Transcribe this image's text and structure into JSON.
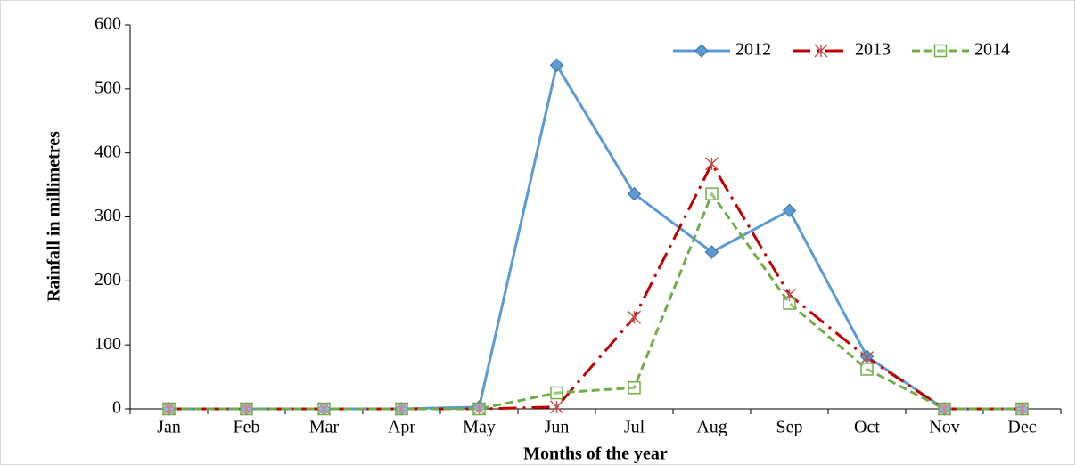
{
  "chart_data": {
    "type": "line",
    "x_label": "Months of the year",
    "y_label": "Rainfall in millimetres",
    "categories": [
      "Jan",
      "Feb",
      "Mar",
      "Apr",
      "May",
      "Jun",
      "Jul",
      "Aug",
      "Sep",
      "Oct",
      "Nov",
      "Dec"
    ],
    "ylim": [
      0,
      600
    ],
    "yticks": [
      0,
      100,
      200,
      300,
      400,
      500,
      600
    ],
    "grid": false,
    "legend": "upper right",
    "series": [
      {
        "name": "2012",
        "color": "#5b9bd5",
        "marker": "diamond",
        "dash": "solid",
        "values": [
          0,
          0,
          0,
          0,
          3,
          537,
          336,
          245,
          310,
          82,
          0,
          0
        ]
      },
      {
        "name": "2013",
        "color": "#c00000",
        "marker": "star",
        "dash": "dashdot",
        "values": [
          0,
          0,
          0,
          0,
          0,
          3,
          143,
          383,
          178,
          80,
          0,
          0
        ]
      },
      {
        "name": "2014",
        "color": "#70ad47",
        "marker": "square",
        "dash": "dashed",
        "values": [
          0,
          0,
          0,
          0,
          0,
          25,
          33,
          336,
          165,
          62,
          0,
          0
        ]
      }
    ]
  }
}
